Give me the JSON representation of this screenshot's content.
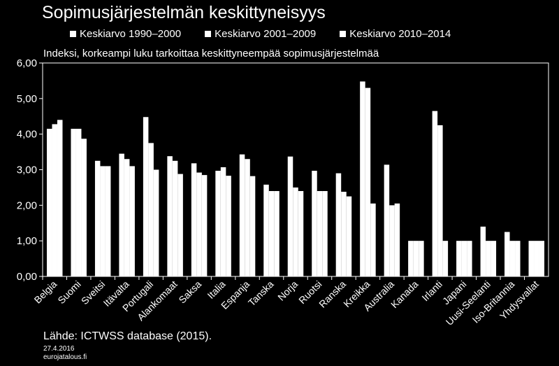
{
  "header": {
    "title": "Sopimusjärjestelmän keskittyneisyys",
    "subtitle": "Indeksi, korkeampi luku tarkoittaa keskittyneempää sopimusjärjestelmää"
  },
  "footer": {
    "source": "Lähde: ICTWSS database (2015).",
    "date": "27.4.2016",
    "site": "eurojatalous.fi"
  },
  "colors": {
    "background": "#000000",
    "bars": "#ffffff",
    "text": "#ffffff"
  },
  "chart_data": {
    "type": "bar",
    "title": "Sopimusjärjestelmän keskittyneisyys",
    "subtitle": "Indeksi, korkeampi luku tarkoittaa keskittyneempää sopimusjärjestelmää",
    "ylim": [
      0,
      6
    ],
    "yticks": [
      "0,00",
      "1,00",
      "2,00",
      "3,00",
      "4,00",
      "5,00",
      "6,00"
    ],
    "grid": false,
    "legend_position": "top",
    "categories": [
      "Belgia",
      "Suomi",
      "Sveitsi",
      "Itävalta",
      "Portugali",
      "Alankomaat",
      "Saksa",
      "Italia",
      "Espanja",
      "Tanska",
      "Norja",
      "Ruotsi",
      "Ranska",
      "Kreikka",
      "Australia",
      "Kanada",
      "Irlanti",
      "Japani",
      "Uusi-Seelanti",
      "Iso-Britannia",
      "Yhdysvallat"
    ],
    "series": [
      {
        "name": "Keskiarvo 1990–2000",
        "values": [
          4.15,
          4.15,
          3.25,
          3.45,
          4.48,
          3.38,
          3.18,
          2.97,
          3.43,
          2.58,
          3.37,
          2.97,
          2.9,
          5.48,
          3.14,
          1.0,
          4.65,
          1.0,
          1.4,
          1.25,
          1.0
        ]
      },
      {
        "name": "Keskiarvo 2001–2009",
        "values": [
          4.28,
          4.15,
          3.1,
          3.3,
          3.75,
          3.25,
          2.92,
          3.07,
          3.3,
          2.4,
          2.5,
          2.4,
          2.38,
          5.3,
          2.0,
          1.0,
          4.25,
          1.0,
          1.0,
          1.0,
          1.0
        ]
      },
      {
        "name": "Keskiarvo 2010–2014",
        "values": [
          4.4,
          3.87,
          3.1,
          3.1,
          3.0,
          2.88,
          2.85,
          2.83,
          2.82,
          2.4,
          2.4,
          2.4,
          2.25,
          2.05,
          2.05,
          1.0,
          1.0,
          1.0,
          1.0,
          1.0,
          1.0
        ]
      }
    ]
  }
}
